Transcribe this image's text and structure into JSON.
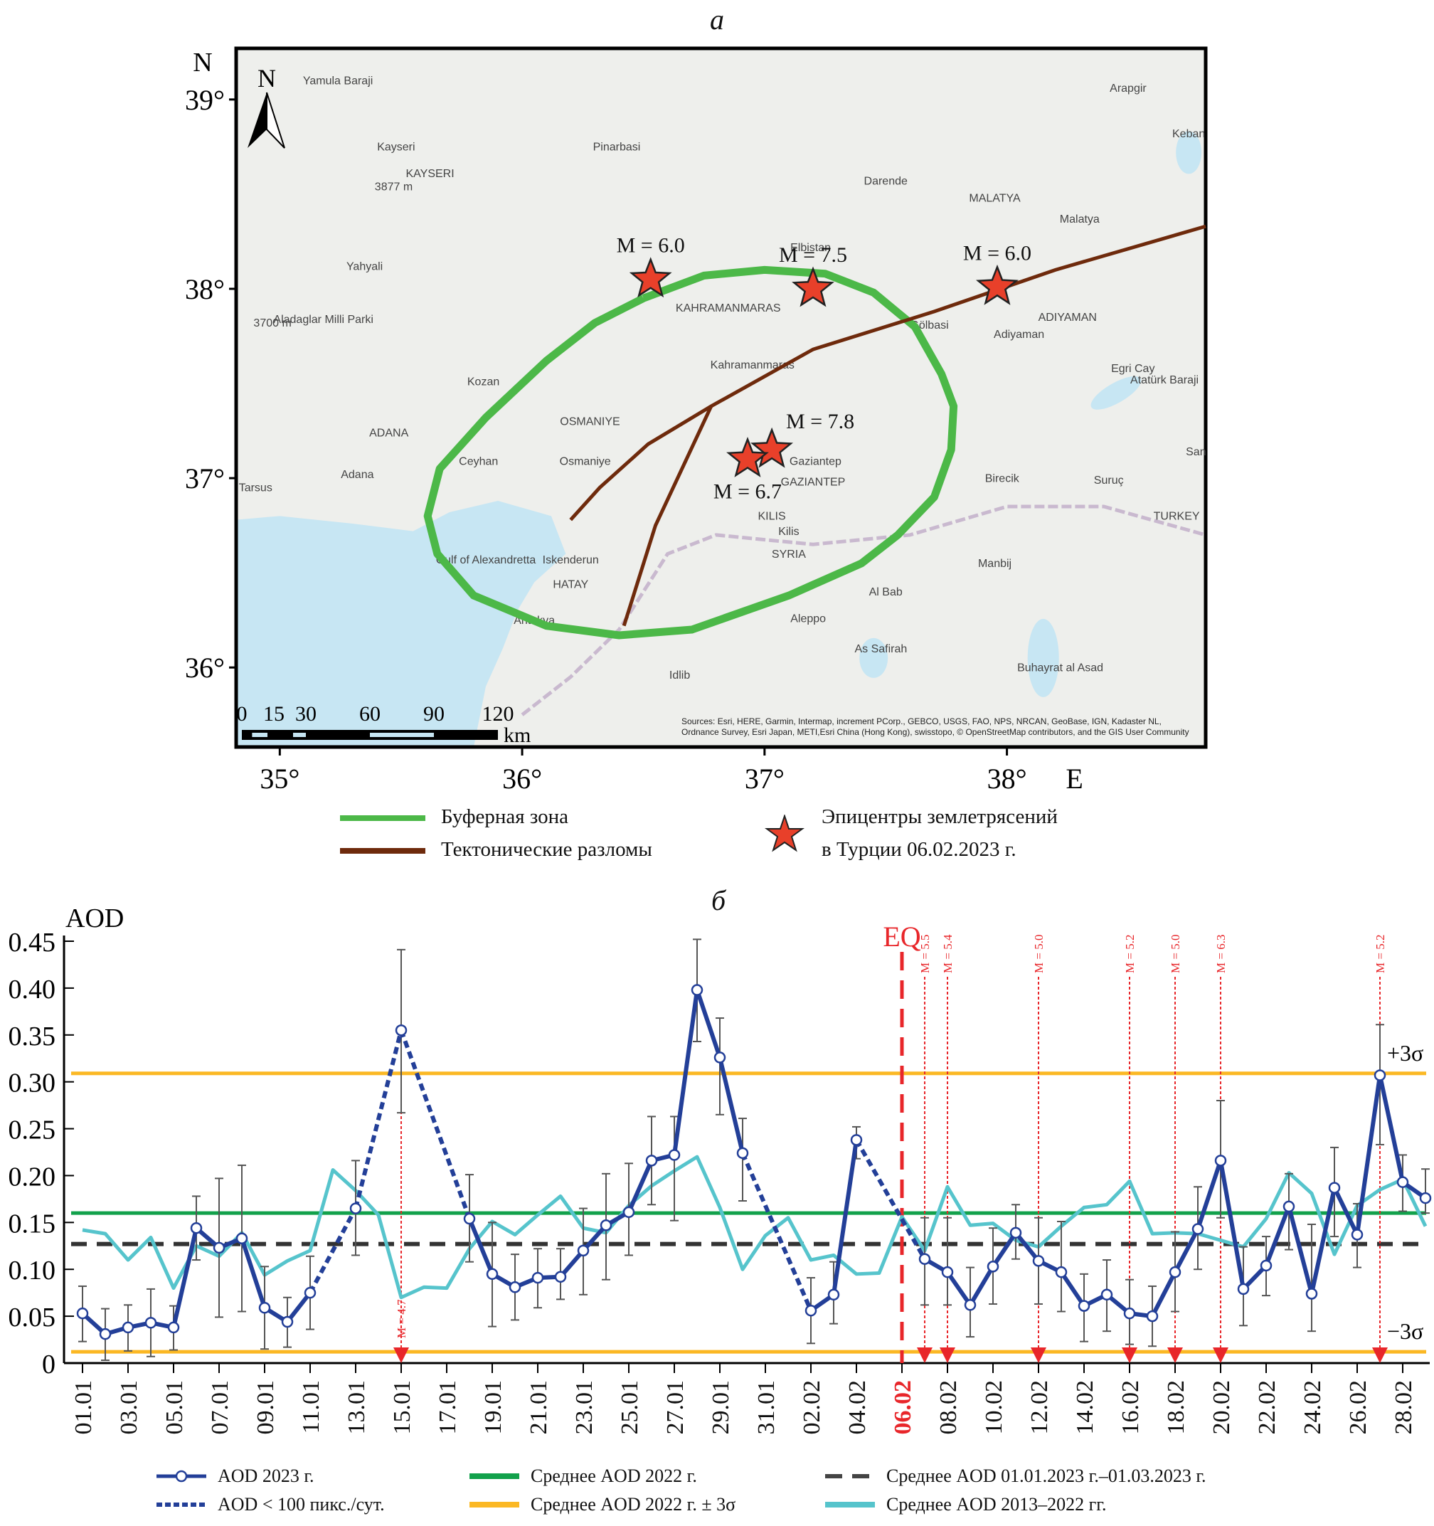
{
  "map": {
    "panel_label": "a",
    "lat_axis_label": "N",
    "lon_axis_label": "E",
    "lat_ticks": [
      "39°",
      "38°",
      "37°",
      "36°"
    ],
    "lat_tick_values": [
      39,
      38,
      37,
      36
    ],
    "lon_ticks": [
      "35°",
      "36°",
      "37°",
      "38°"
    ],
    "lon_tick_values": [
      35,
      36,
      37,
      38
    ],
    "extent": {
      "lon_min": 34.82,
      "lon_max": 38.82,
      "lat_min": 35.58,
      "lat_max": 39.27
    },
    "north_arrow_label": "N",
    "scale_bar": {
      "labels": [
        "0",
        "15",
        "30",
        "60",
        "90",
        "120"
      ],
      "unit": "km"
    },
    "attribution": "Sources: Esri, HERE, Garmin, Intermap, increment PCorp., GEBCO, USGS, FAO, NPS, NRCAN, GeoBase, IGN, Kadaster NL, Ordnance Survey, Esri Japan, METI,Esri China (Hong Kong), swisstopo, © OpenStreetMap contributors, and the GIS User Community",
    "colors": {
      "land": "#eeefec",
      "sea": "#c7e6f3",
      "buffer": "#4cb848",
      "fault": "#6e2a0c",
      "star": "#e8402a",
      "border": "#c9b9cf",
      "river": "#8fcfe5"
    },
    "place_labels": [
      {
        "text": "Kayseri",
        "lon": 35.48,
        "lat": 38.73
      },
      {
        "text": "KAYSERI",
        "lon": 35.62,
        "lat": 38.59
      },
      {
        "text": "3877 m",
        "lon": 35.47,
        "lat": 38.52
      },
      {
        "text": "Pinarbasi",
        "lon": 36.39,
        "lat": 38.73
      },
      {
        "text": "Yamula Baraji",
        "lon": 35.24,
        "lat": 39.08
      },
      {
        "text": "Darende",
        "lon": 37.5,
        "lat": 38.55
      },
      {
        "text": "MALATYA",
        "lon": 37.95,
        "lat": 38.46
      },
      {
        "text": "Malatya",
        "lon": 38.3,
        "lat": 38.35
      },
      {
        "text": "Arapgir",
        "lon": 38.5,
        "lat": 39.04
      },
      {
        "text": "Keban",
        "lon": 38.75,
        "lat": 38.8
      },
      {
        "text": "Elbistan",
        "lon": 37.19,
        "lat": 38.2
      },
      {
        "text": "Yahyali",
        "lon": 35.35,
        "lat": 38.1
      },
      {
        "text": "3700 m",
        "lon": 34.97,
        "lat": 37.8
      },
      {
        "text": "Aladaglar Milli Parki",
        "lon": 35.18,
        "lat": 37.82
      },
      {
        "text": "KAHRAMANMARAS",
        "lon": 36.85,
        "lat": 37.88
      },
      {
        "text": "Kahramanmaras",
        "lon": 36.95,
        "lat": 37.58
      },
      {
        "text": "Gölbasi",
        "lon": 37.68,
        "lat": 37.79
      },
      {
        "text": "ADIYAMAN",
        "lon": 38.25,
        "lat": 37.83
      },
      {
        "text": "Adiyaman",
        "lon": 38.05,
        "lat": 37.74
      },
      {
        "text": "Egri Cay",
        "lon": 38.52,
        "lat": 37.56
      },
      {
        "text": "Atatürk Baraji",
        "lon": 38.65,
        "lat": 37.5
      },
      {
        "text": "Kozan",
        "lon": 35.84,
        "lat": 37.49
      },
      {
        "text": "OSMANIYE",
        "lon": 36.28,
        "lat": 37.28
      },
      {
        "text": "ADANA",
        "lon": 35.45,
        "lat": 37.22
      },
      {
        "text": "Ceyhan",
        "lon": 35.82,
        "lat": 37.07
      },
      {
        "text": "Osmaniye",
        "lon": 36.26,
        "lat": 37.07
      },
      {
        "text": "Adana",
        "lon": 35.32,
        "lat": 37.0
      },
      {
        "text": "Tarsus",
        "lon": 34.9,
        "lat": 36.93
      },
      {
        "text": "Gaziantep",
        "lon": 37.21,
        "lat": 37.07
      },
      {
        "text": "GAZIANTEP",
        "lon": 37.2,
        "lat": 36.96
      },
      {
        "text": "Birecik",
        "lon": 37.98,
        "lat": 36.98
      },
      {
        "text": "Suruç",
        "lon": 38.42,
        "lat": 36.97
      },
      {
        "text": "San",
        "lon": 38.78,
        "lat": 37.12
      },
      {
        "text": "TURKEY",
        "lon": 38.7,
        "lat": 36.78
      },
      {
        "text": "KILIS",
        "lon": 37.03,
        "lat": 36.78
      },
      {
        "text": "Kilis",
        "lon": 37.1,
        "lat": 36.7
      },
      {
        "text": "SYRIA",
        "lon": 37.1,
        "lat": 36.58
      },
      {
        "text": "Gulf of Alexandretta",
        "lon": 35.85,
        "lat": 36.55
      },
      {
        "text": "Iskenderun",
        "lon": 36.2,
        "lat": 36.55
      },
      {
        "text": "HATAY",
        "lon": 36.2,
        "lat": 36.42
      },
      {
        "text": "Antakya",
        "lon": 36.05,
        "lat": 36.23
      },
      {
        "text": "Manbij",
        "lon": 37.95,
        "lat": 36.53
      },
      {
        "text": "Al Bab",
        "lon": 37.5,
        "lat": 36.38
      },
      {
        "text": "Aleppo",
        "lon": 37.18,
        "lat": 36.24
      },
      {
        "text": "As Safirah",
        "lon": 37.48,
        "lat": 36.08
      },
      {
        "text": "Buhayrat al Asad",
        "lon": 38.22,
        "lat": 35.98
      },
      {
        "text": "Idlib",
        "lon": 36.65,
        "lat": 35.94
      }
    ],
    "buffer_zone": [
      [
        36.5,
        37.95
      ],
      [
        36.75,
        38.07
      ],
      [
        37.0,
        38.1
      ],
      [
        37.25,
        38.08
      ],
      [
        37.45,
        37.98
      ],
      [
        37.62,
        37.8
      ],
      [
        37.73,
        37.55
      ],
      [
        37.78,
        37.38
      ],
      [
        37.77,
        37.15
      ],
      [
        37.7,
        36.9
      ],
      [
        37.55,
        36.7
      ],
      [
        37.4,
        36.55
      ],
      [
        37.1,
        36.38
      ],
      [
        36.7,
        36.2
      ],
      [
        36.4,
        36.17
      ],
      [
        36.1,
        36.22
      ],
      [
        35.8,
        36.38
      ],
      [
        35.65,
        36.6
      ],
      [
        35.61,
        36.8
      ],
      [
        35.66,
        37.05
      ],
      [
        35.85,
        37.32
      ],
      [
        36.1,
        37.62
      ],
      [
        36.3,
        37.82
      ],
      [
        36.5,
        37.95
      ]
    ],
    "faults": [
      [
        [
          36.2,
          36.78
        ],
        [
          36.32,
          36.95
        ],
        [
          36.52,
          37.18
        ],
        [
          36.78,
          37.38
        ],
        [
          37.2,
          37.68
        ],
        [
          37.7,
          37.88
        ],
        [
          38.2,
          38.1
        ],
        [
          38.82,
          38.33
        ]
      ],
      [
        [
          36.78,
          37.38
        ],
        [
          36.55,
          36.75
        ],
        [
          36.42,
          36.22
        ]
      ]
    ],
    "epicenters": [
      {
        "label": "M = 6.0",
        "lon": 36.53,
        "lat": 38.05,
        "label_pos": "above"
      },
      {
        "label": "M = 7.5",
        "lon": 37.2,
        "lat": 38.0,
        "label_pos": "above"
      },
      {
        "label": "M = 6.0",
        "lon": 37.96,
        "lat": 38.01,
        "label_pos": "above"
      },
      {
        "label": "M = 7.8",
        "lon": 37.03,
        "lat": 37.15,
        "label_pos": "right-above"
      },
      {
        "label": "M = 6.7",
        "lon": 36.93,
        "lat": 37.1,
        "label_pos": "below"
      }
    ],
    "legend": {
      "buffer": "Буферная зона",
      "faults": "Тектонические разломы",
      "epicenters_line1": "Эпицентры землетрясений",
      "epicenters_line2": "в Турции 06.02.2023 г."
    }
  },
  "chart_data": {
    "type": "line",
    "panel_label": "б",
    "title": "",
    "ylabel": "AOD",
    "xlabel": "",
    "ylim": [
      0,
      0.45
    ],
    "yticks": [
      0,
      0.05,
      0.1,
      0.15,
      0.2,
      0.25,
      0.3,
      0.35,
      0.4,
      0.45
    ],
    "ytick_labels": [
      "0",
      "0.05",
      "0.10",
      "0.15",
      "0.20",
      "0.25",
      "0.30",
      "0.35",
      "0.40",
      "0.45"
    ],
    "x": [
      "01.01",
      "02.01",
      "03.01",
      "04.01",
      "05.01",
      "06.01",
      "07.01",
      "08.01",
      "09.01",
      "10.01",
      "11.01",
      "12.01",
      "13.01",
      "14.01",
      "15.01",
      "16.01",
      "17.01",
      "18.01",
      "19.01",
      "20.01",
      "21.01",
      "22.01",
      "23.01",
      "24.01",
      "25.01",
      "26.01",
      "27.01",
      "28.01",
      "29.01",
      "30.01",
      "31.01",
      "01.02",
      "02.02",
      "03.02",
      "04.02",
      "05.02",
      "06.02",
      "07.02",
      "08.02",
      "09.02",
      "10.02",
      "11.02",
      "12.02",
      "13.02",
      "14.02",
      "15.02",
      "16.02",
      "17.02",
      "18.02",
      "19.02",
      "20.02",
      "21.02",
      "22.02",
      "23.02",
      "24.02",
      "25.02",
      "26.02",
      "27.02",
      "28.02",
      "01.03"
    ],
    "xtick_labels": [
      "01.01",
      "03.01",
      "05.01",
      "07.01",
      "09.01",
      "11.01",
      "13.01",
      "15.01",
      "17.01",
      "19.01",
      "21.01",
      "23.01",
      "25.01",
      "27.01",
      "29.01",
      "31.01",
      "02.02",
      "04.02",
      "06.02",
      "08.02",
      "10.02",
      "12.02",
      "14.02",
      "16.02",
      "18.02",
      "20.02",
      "22.02",
      "24.02",
      "26.02",
      "28.02"
    ],
    "highlight_xtick": "06.02",
    "series": [
      {
        "name": "AOD 2023 г.",
        "color": "#233f98",
        "values": [
          0.053,
          0.031,
          0.038,
          0.043,
          0.038,
          0.144,
          0.123,
          0.133,
          0.059,
          0.044,
          0.075,
          null,
          0.165,
          null,
          0.355,
          null,
          null,
          0.154,
          0.095,
          0.081,
          0.091,
          0.092,
          0.12,
          0.147,
          0.161,
          0.216,
          0.222,
          0.398,
          0.326,
          0.224,
          null,
          null,
          0.056,
          0.073,
          0.238,
          null,
          null,
          0.111,
          0.097,
          0.062,
          0.103,
          0.139,
          0.109,
          0.097,
          0.061,
          0.073,
          0.053,
          0.05,
          0.097,
          0.143,
          0.216,
          0.079,
          0.104,
          0.167,
          0.074,
          0.187,
          0.137,
          0.307,
          0.193,
          0.176
        ],
        "error_low": [
          0.023,
          0.003,
          0.013,
          0.007,
          0.014,
          0.11,
          0.049,
          0.055,
          0.015,
          0.017,
          0.036,
          null,
          0.115,
          null,
          0.267,
          null,
          null,
          0.108,
          0.039,
          0.046,
          0.059,
          0.068,
          0.073,
          0.089,
          0.115,
          0.169,
          0.152,
          0.343,
          0.265,
          0.173,
          null,
          null,
          0.021,
          0.042,
          0.218,
          null,
          null,
          0.062,
          0.062,
          0.028,
          0.063,
          0.111,
          0.063,
          0.055,
          0.023,
          0.034,
          0.02,
          0.018,
          0.055,
          0.1,
          0.155,
          0.04,
          0.072,
          0.121,
          0.034,
          0.135,
          0.102,
          0.233,
          0.162,
          0.16
        ],
        "error_high": [
          0.082,
          0.058,
          0.062,
          0.079,
          0.061,
          0.178,
          0.197,
          0.211,
          0.103,
          0.07,
          0.114,
          null,
          0.216,
          null,
          0.441,
          null,
          null,
          0.201,
          0.15,
          0.116,
          0.122,
          0.122,
          0.165,
          0.202,
          0.213,
          0.263,
          0.263,
          0.452,
          0.368,
          0.261,
          null,
          null,
          0.091,
          0.108,
          0.252,
          null,
          null,
          0.155,
          0.155,
          0.102,
          0.144,
          0.169,
          0.155,
          0.151,
          0.095,
          0.11,
          0.089,
          0.082,
          0.14,
          0.188,
          0.28,
          0.124,
          0.135,
          0.202,
          0.148,
          0.23,
          0.17,
          0.361,
          0.222,
          0.207
        ]
      },
      {
        "name": "AOD < 100 пикс./сут.",
        "color": "#233f98",
        "style": "dotted",
        "segments": [
          [
            "11.01",
            "13.01"
          ],
          [
            "13.01",
            "15.01"
          ],
          [
            "15.01",
            "18.01"
          ],
          [
            "30.01",
            "02.02"
          ],
          [
            "04.02",
            "07.02"
          ]
        ]
      },
      {
        "name": "Среднее AOD 2013–2022 гг.",
        "color": "#56c4cc",
        "values": [
          0.142,
          0.138,
          0.11,
          0.134,
          0.08,
          0.125,
          0.114,
          0.139,
          0.094,
          0.109,
          0.12,
          0.206,
          0.184,
          0.158,
          0.07,
          0.081,
          0.08,
          0.122,
          0.151,
          0.137,
          0.158,
          0.178,
          0.144,
          0.139,
          0.168,
          0.189,
          0.205,
          0.22,
          0.166,
          0.1,
          0.136,
          0.155,
          0.11,
          0.115,
          0.095,
          0.096,
          0.156,
          0.12,
          0.188,
          0.147,
          0.149,
          0.131,
          0.124,
          0.146,
          0.166,
          0.169,
          0.194,
          0.138,
          0.139,
          0.138,
          0.131,
          0.124,
          0.154,
          0.203,
          0.181,
          0.116,
          0.168,
          0.185,
          0.196,
          0.146
        ]
      }
    ],
    "hlines": [
      {
        "name": "Среднее AOD 2022 г.",
        "value": 0.16,
        "color": "#12a14b",
        "style": "solid"
      },
      {
        "name": "Среднее AOD 2022 г. ± 3σ",
        "value": 0.309,
        "color": "#fbb824",
        "style": "solid",
        "label": "+3σ"
      },
      {
        "name": "Среднее AOD 2022 г. ± 3σ",
        "value": 0.012,
        "color": "#fbb824",
        "style": "solid",
        "label": "−3σ"
      },
      {
        "name": "Среднее AOD 01.01.2023 г.–01.03.2023 г.",
        "value": 0.127,
        "color": "#333333",
        "style": "dashed"
      }
    ],
    "main_event": {
      "label": "EQ",
      "x": "06.02",
      "color": "#e8262a"
    },
    "events": [
      {
        "x": "15.01",
        "label": "M = 4.7"
      },
      {
        "x": "07.02",
        "label": "M = 5.5"
      },
      {
        "x": "08.02",
        "label": "M = 5.4"
      },
      {
        "x": "12.02",
        "label": "M = 5.0"
      },
      {
        "x": "16.02",
        "label": "M = 5.2"
      },
      {
        "x": "18.02",
        "label": "M = 5.0"
      },
      {
        "x": "20.02",
        "label": "M = 6.3"
      },
      {
        "x": "27.02",
        "label": "M = 5.2"
      }
    ],
    "legend": [
      {
        "label": "AOD 2023 г.",
        "kind": "marker-line",
        "color": "#233f98"
      },
      {
        "label": "Среднее AOD 2022 г.",
        "kind": "line",
        "color": "#12a14b"
      },
      {
        "label": "Среднее AOD 01.01.2023 г.–01.03.2023 г.",
        "kind": "dashed",
        "color": "#444444"
      },
      {
        "label": "AOD < 100 пикс./сут.",
        "kind": "dotted",
        "color": "#233f98"
      },
      {
        "label": "Среднее AOD 2022 г. ± 3σ",
        "kind": "line",
        "color": "#fbb824"
      },
      {
        "label": "Среднее AOD 2013–2022 гг.",
        "kind": "line",
        "color": "#56c4cc"
      }
    ],
    "legend_position": "bottom",
    "grid": false
  }
}
